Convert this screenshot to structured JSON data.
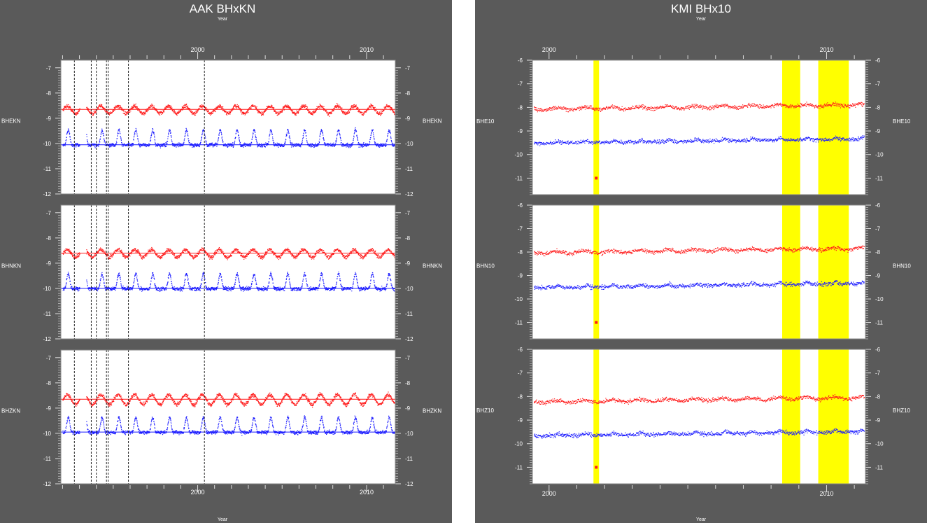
{
  "charts": [
    {
      "title": "AAK BHxKN",
      "top_axis_label": "Year",
      "bottom_axis_label": "Year",
      "x_range": [
        1991.9,
        2011.7
      ],
      "x_major_ticks": [
        2000,
        2010
      ],
      "x_minor_ticks": [
        1992,
        1993,
        1994,
        1995,
        1996,
        1997,
        1998,
        1999,
        2001,
        2002,
        2003,
        2004,
        2005,
        2006,
        2007,
        2008,
        2009,
        2011
      ],
      "y_range": [
        -12,
        -6.7
      ],
      "y_ticks": [
        -7,
        -8,
        -9,
        -10,
        -11,
        -12
      ],
      "event_lines": [
        1992.7,
        1993.7,
        1994.0,
        1994.6,
        1994.7,
        1995.9,
        2000.4
      ],
      "highlight_bands": [],
      "panels": [
        {
          "label": "BHEKN",
          "red_base": -8.65,
          "red_season": 0.15,
          "blue_base": -10.05,
          "blue_season": 0.6
        },
        {
          "label": "BHNKN",
          "red_base": -8.6,
          "red_season": 0.15,
          "blue_base": -10.0,
          "blue_season": 0.6
        },
        {
          "label": "BHZKN",
          "red_base": -8.65,
          "red_season": 0.2,
          "blue_base": -9.95,
          "blue_season": 0.6
        }
      ]
    },
    {
      "title": "KMI BHx10",
      "top_axis_label": "Year",
      "bottom_axis_label": "Year",
      "x_range": [
        1999.4,
        2011.4
      ],
      "x_major_ticks": [
        2000,
        2010
      ],
      "x_minor_ticks": [
        2001,
        2002,
        2003,
        2004,
        2005,
        2006,
        2007,
        2008,
        2009,
        2011
      ],
      "y_range": [
        -11.7,
        -6
      ],
      "y_ticks": [
        -6,
        -7,
        -8,
        -9,
        -10,
        -11
      ],
      "event_lines": [],
      "highlight_bands": [
        [
          2001.6,
          2001.8
        ],
        [
          2008.4,
          2009.05
        ],
        [
          2009.7,
          2010.8
        ]
      ],
      "panels": [
        {
          "label": "BHE10",
          "red_base": -8.05,
          "red_season": 0.05,
          "blue_base": -9.5,
          "blue_season": 0.08
        },
        {
          "label": "BHN10",
          "red_base": -8.0,
          "red_season": 0.05,
          "blue_base": -9.5,
          "blue_season": 0.08
        },
        {
          "label": "BHZ10",
          "red_base": -8.2,
          "red_season": 0.05,
          "blue_base": -9.65,
          "blue_season": 0.08
        }
      ],
      "outlier": {
        "x": 2001.7,
        "y": -11
      }
    }
  ],
  "colors": {
    "background": "#5a5a5a",
    "plot": "#ffffff",
    "red_series": "#ff1a1a",
    "blue_series": "#1a1aff",
    "band": "#ffff00",
    "text": "#ffffff",
    "axis": "#dddddd",
    "event_line": "#222222"
  }
}
